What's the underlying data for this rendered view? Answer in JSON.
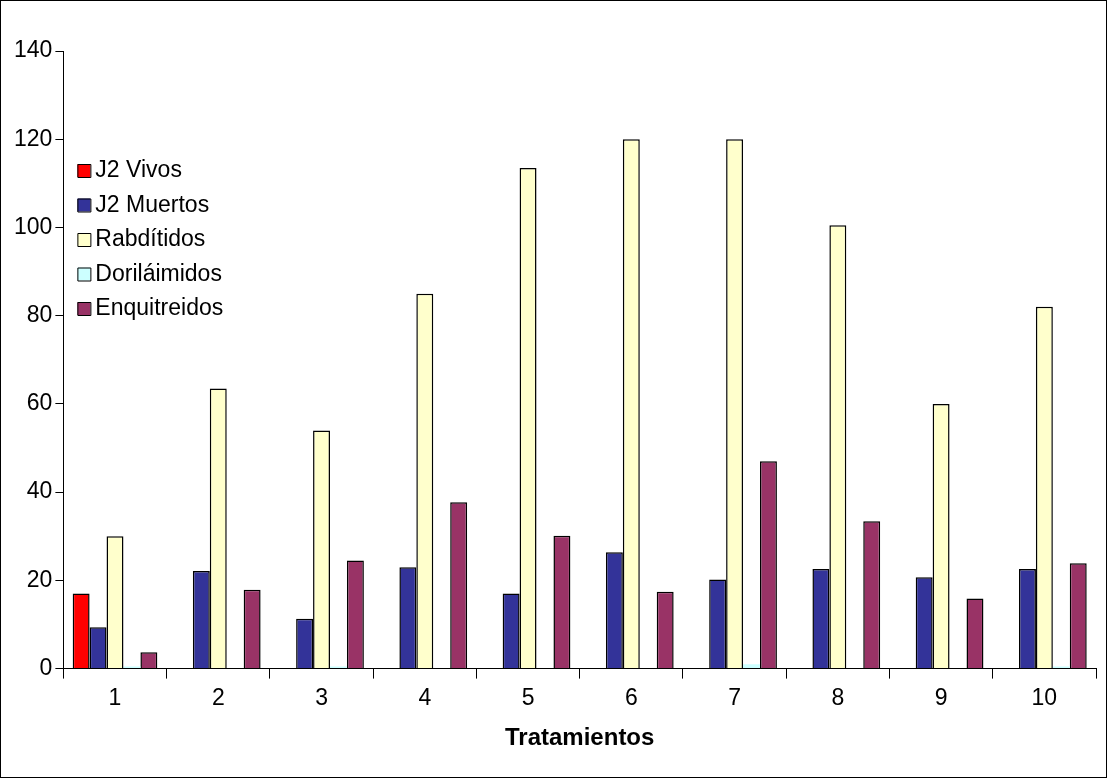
{
  "chart_data": {
    "type": "bar",
    "xlabel": "Tratamientos",
    "categories": [
      "1",
      "2",
      "3",
      "4",
      "5",
      "6",
      "7",
      "8",
      "9",
      "10"
    ],
    "series": [
      {
        "name": "J2 Vivos",
        "color": "#ff0000",
        "values": [
          17,
          0,
          0,
          0,
          0,
          0,
          0,
          0,
          0,
          0
        ]
      },
      {
        "name": "J2 Muertos",
        "color": "#333399",
        "values": [
          9.4,
          22.1,
          11.3,
          23,
          17,
          26.4,
          20.2,
          22.6,
          20.7,
          22.6
        ]
      },
      {
        "name": "Rabdítidos",
        "color": "#ffffcc",
        "values": [
          30,
          63.5,
          54,
          85,
          113.5,
          120,
          120,
          100.5,
          60,
          82
        ]
      },
      {
        "name": "Doriláimidos",
        "color": "#ccffff",
        "values": [
          0.5,
          0,
          0.5,
          0,
          0,
          0,
          1,
          0,
          0,
          0.5
        ]
      },
      {
        "name": "Enquitreidos",
        "color": "#993366",
        "values": [
          3.7,
          17.9,
          24.5,
          37.7,
          30.1,
          17.4,
          47,
          33.4,
          15.9,
          23.9
        ]
      }
    ],
    "ylim": [
      0,
      140
    ],
    "yticks": [
      0,
      20,
      40,
      60,
      80,
      100,
      120,
      140
    ],
    "grid": false,
    "legend": "top left"
  }
}
